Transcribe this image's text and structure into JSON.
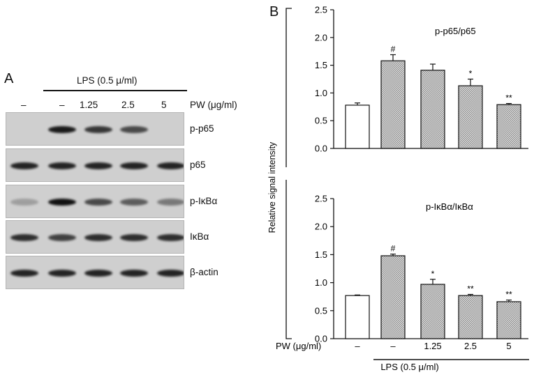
{
  "panel_a": {
    "letter": "A",
    "lps_label": "LPS (0.5 μ/ml)",
    "pw_label": "PW (μg/ml)",
    "lanes": [
      "–",
      "–",
      "1.25",
      "2.5",
      "5"
    ],
    "blots": [
      {
        "label": "p-p65",
        "intensities": [
          0,
          0.95,
          0.8,
          0.7,
          0
        ]
      },
      {
        "label": "p65",
        "intensities": [
          0.9,
          0.9,
          0.9,
          0.9,
          0.9
        ]
      },
      {
        "label": "p-IκBα",
        "intensities": [
          0.25,
          1.0,
          0.7,
          0.6,
          0.45
        ]
      },
      {
        "label": "IκBα",
        "intensities": [
          0.85,
          0.75,
          0.85,
          0.85,
          0.85
        ]
      },
      {
        "label": "β-actin",
        "intensities": [
          0.9,
          0.9,
          0.9,
          0.9,
          0.9
        ]
      }
    ]
  },
  "panel_b": {
    "letter": "B",
    "ylabel": "Relative signal intensity",
    "pw_label": "PW (μg/ml)",
    "lps_label": "LPS (0.5 μ/ml)"
  },
  "chart_data": [
    {
      "type": "bar",
      "title": "p-p65/p65",
      "categories": [
        "–",
        "–",
        "1.25",
        "2.5",
        "5"
      ],
      "values": [
        0.78,
        1.58,
        1.41,
        1.13,
        0.79
      ],
      "errors": [
        0.04,
        0.11,
        0.11,
        0.12,
        0.02
      ],
      "annotations": [
        "",
        "#",
        "",
        "*",
        "**"
      ],
      "ylim": [
        0,
        2.5
      ],
      "yticks": [
        "0.0",
        "0.5",
        "1.0",
        "1.5",
        "2.0",
        "2.5"
      ],
      "colors": {
        "control": "#ffffff",
        "treated": "#c8c8c8"
      }
    },
    {
      "type": "bar",
      "title": "p-IκBα/IκBα",
      "categories": [
        "–",
        "–",
        "1.25",
        "2.5",
        "5"
      ],
      "values": [
        0.77,
        1.48,
        0.97,
        0.77,
        0.66
      ],
      "errors": [
        0.01,
        0.03,
        0.09,
        0.02,
        0.03
      ],
      "annotations": [
        "",
        "#",
        "*",
        "**",
        "**"
      ],
      "ylim": [
        0,
        2.5
      ],
      "yticks": [
        "0.0",
        "0.5",
        "1.0",
        "1.5",
        "2.0",
        "2.5"
      ],
      "colors": {
        "control": "#ffffff",
        "treated": "#c8c8c8"
      }
    }
  ]
}
